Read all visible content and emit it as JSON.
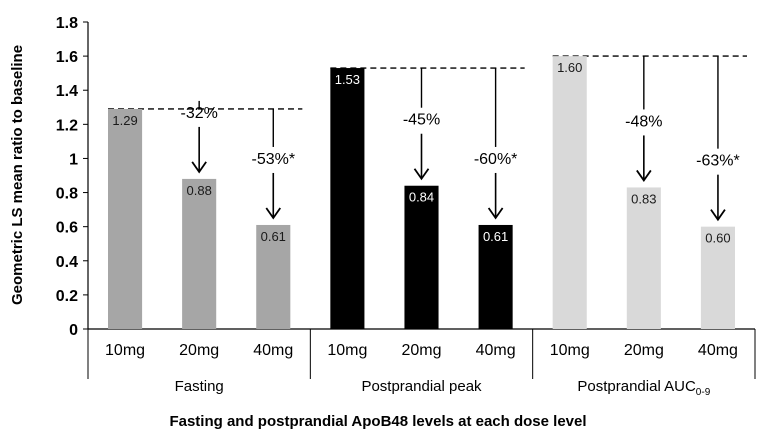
{
  "chart_data": {
    "type": "bar",
    "ylabel": "Geometric LS mean ratio to baseline",
    "xlabel": "Fasting and postprandial ApoB48 levels at each dose level",
    "ylim": [
      0,
      1.8
    ],
    "y_ticks": [
      "0",
      "0.2",
      "0.4",
      "0.6",
      "0.8",
      "1",
      "1.2",
      "1.4",
      "1.6",
      "1.8"
    ],
    "grid": false,
    "groups": [
      {
        "name": "Fasting",
        "name_sub": "",
        "color": "#a6a6a6",
        "value_label_color": "#1a1a1a",
        "categories": [
          "10mg",
          "20mg",
          "40mg"
        ],
        "values": [
          1.29,
          0.88,
          0.61
        ],
        "value_labels": [
          "1.29",
          "0.88",
          "0.61"
        ],
        "baseline": 1.29,
        "reductions": [
          "",
          "-32%",
          "-53%*"
        ]
      },
      {
        "name": "Postprandial peak",
        "name_sub": "",
        "color": "#000000",
        "value_label_color": "#ffffff",
        "categories": [
          "10mg",
          "20mg",
          "40mg"
        ],
        "values": [
          1.53,
          0.84,
          0.61
        ],
        "value_labels": [
          "1.53",
          "0.84",
          "0.61"
        ],
        "baseline": 1.53,
        "reductions": [
          "",
          "-45%",
          "-60%*"
        ]
      },
      {
        "name": "Postprandial AUC",
        "name_sub": "0-9",
        "color": "#d9d9d9",
        "value_label_color": "#1a1a1a",
        "categories": [
          "10mg",
          "20mg",
          "40mg"
        ],
        "values": [
          1.6,
          0.83,
          0.6
        ],
        "value_labels": [
          "1.60",
          "0.83",
          "0.60"
        ],
        "baseline": 1.6,
        "reductions": [
          "",
          "-48%",
          "-63%*"
        ]
      }
    ]
  }
}
